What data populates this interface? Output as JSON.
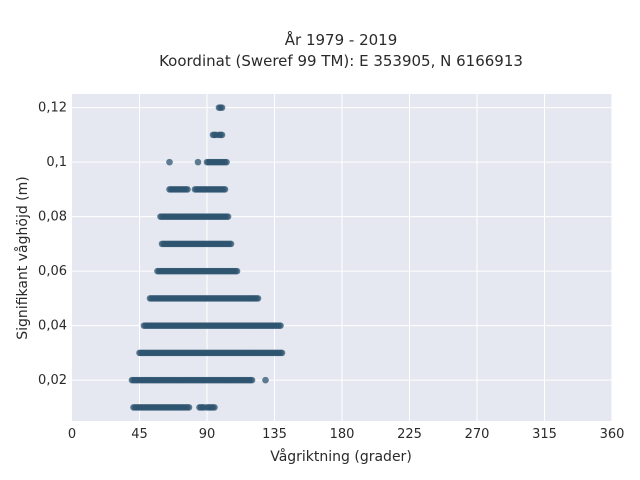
{
  "chart_data": {
    "type": "scatter",
    "title": "År 1979 - 2019",
    "subtitle": "Koordinat (Sweref 99 TM): E 353905, N 6166913",
    "xlabel": "Vågriktning (grader)",
    "ylabel": "Signifikant våghöjd (m)",
    "xlim": [
      0,
      360
    ],
    "ylim": [
      0.005,
      0.125
    ],
    "x_ticks": [
      0,
      45,
      90,
      135,
      180,
      225,
      270,
      315,
      360
    ],
    "x_tick_labels": [
      "0",
      "45",
      "90",
      "135",
      "180",
      "225",
      "270",
      "315",
      "360"
    ],
    "y_ticks": [
      0.02,
      0.04,
      0.06,
      0.08,
      0.1,
      0.12
    ],
    "y_tick_labels": [
      "0,02",
      "0,04",
      "0,06",
      "0,08",
      "0,1",
      "0,12"
    ],
    "grid": true,
    "marker_color": "#2e5470",
    "background_color": "#e5e8f0",
    "points": [
      {
        "y": 0.12,
        "ranges": [
          [
            98,
            100
          ]
        ]
      },
      {
        "y": 0.11,
        "ranges": [
          [
            94,
            96
          ],
          [
            98,
            100
          ]
        ]
      },
      {
        "y": 0.1,
        "ranges": [
          [
            65,
            65
          ],
          [
            84,
            84
          ],
          [
            90,
            103
          ]
        ]
      },
      {
        "y": 0.09,
        "ranges": [
          [
            65,
            77
          ],
          [
            82,
            102
          ]
        ]
      },
      {
        "y": 0.08,
        "ranges": [
          [
            59,
            104
          ]
        ]
      },
      {
        "y": 0.07,
        "ranges": [
          [
            60,
            106
          ]
        ]
      },
      {
        "y": 0.06,
        "ranges": [
          [
            57,
            110
          ]
        ]
      },
      {
        "y": 0.05,
        "ranges": [
          [
            52,
            124
          ]
        ]
      },
      {
        "y": 0.04,
        "ranges": [
          [
            48,
            139
          ]
        ]
      },
      {
        "y": 0.03,
        "ranges": [
          [
            45,
            140
          ]
        ]
      },
      {
        "y": 0.02,
        "ranges": [
          [
            40,
            120
          ],
          [
            129,
            129
          ]
        ]
      },
      {
        "y": 0.01,
        "ranges": [
          [
            41,
            78
          ],
          [
            85,
            88
          ],
          [
            90,
            95
          ]
        ]
      }
    ]
  }
}
